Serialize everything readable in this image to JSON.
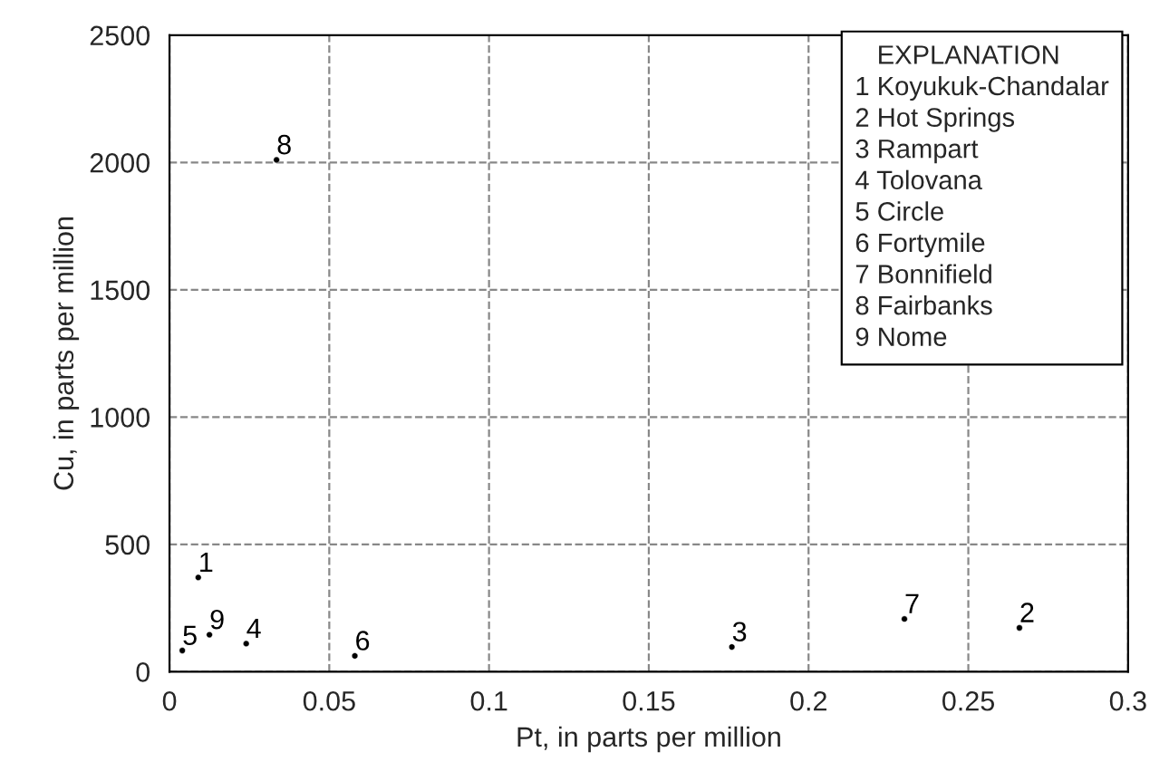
{
  "chart_data": {
    "type": "scatter",
    "xlabel": "Pt, in parts per million",
    "ylabel": "Cu, in parts per million",
    "x": [
      0.009,
      0.266,
      0.176,
      0.024,
      0.004,
      0.058,
      0.23,
      0.0335,
      0.0125
    ],
    "values": [
      370,
      172,
      97,
      110,
      83,
      62,
      207,
      2010,
      145
    ],
    "marker": "circle",
    "color": "#000000",
    "xlim": [
      0,
      0.3
    ],
    "xticks": [
      0,
      0.05,
      0.1,
      0.15,
      0.2,
      0.25,
      0.3
    ],
    "ylim": [
      0,
      2500
    ],
    "yticks": [
      0,
      500,
      1000,
      1500,
      2000,
      2500
    ],
    "grid": true,
    "line_style": "dashed",
    "legend_title": "EXPLANATION",
    "annotations": [
      {
        "text": "1",
        "x": 0.009,
        "y": 370
      },
      {
        "text": "2",
        "x": 0.266,
        "y": 172
      },
      {
        "text": "3",
        "x": 0.176,
        "y": 97
      },
      {
        "text": "4",
        "x": 0.024,
        "y": 110
      },
      {
        "text": "5",
        "x": 0.004,
        "y": 83
      },
      {
        "text": "6",
        "x": 0.058,
        "y": 62
      },
      {
        "text": "7",
        "x": 0.23,
        "y": 207
      },
      {
        "text": "8",
        "x": 0.0335,
        "y": 2010
      },
      {
        "text": "9",
        "x": 0.0125,
        "y": 145
      },
      "1 Koyukuk-Chandalar",
      "2 Hot Springs",
      "3 Rampart",
      "4 Tolovana",
      "5 Circle",
      "6 Fortymile",
      "7 Bonnifield",
      "8 Fairbanks",
      "9 Nome"
    ]
  }
}
